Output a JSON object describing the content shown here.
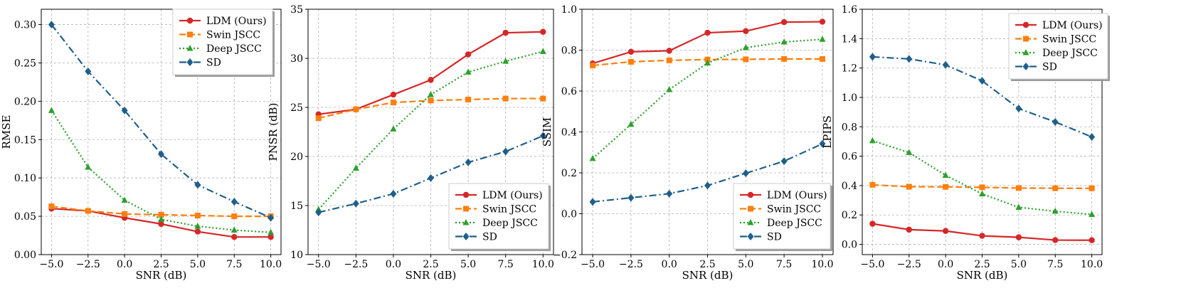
{
  "chart_data": [
    {
      "type": "line",
      "xlabel": "SNR (dB)",
      "ylabel": "RMSE",
      "x": [
        -5.0,
        -2.5,
        0.0,
        2.5,
        5.0,
        7.5,
        10.0
      ],
      "xlim": [
        -5.7,
        10.7
      ],
      "ylim": [
        0.0,
        0.32
      ],
      "xticks": [
        "-5.0",
        "-2.5",
        "0.0",
        "2.5",
        "5.0",
        "7.5",
        "10.0"
      ],
      "yticks": [
        "0.00",
        "0.05",
        "0.10",
        "0.15",
        "0.20",
        "0.25",
        "0.30"
      ],
      "ytick_values": [
        0.0,
        0.05,
        0.1,
        0.15,
        0.2,
        0.25,
        0.3
      ],
      "legend_loc": "top-right",
      "grid": true,
      "series": [
        {
          "name": "LDM (Ours)",
          "values": [
            0.06,
            0.057,
            0.048,
            0.04,
            0.03,
            0.023,
            0.023
          ]
        },
        {
          "name": "Swin JSCC",
          "values": [
            0.063,
            0.057,
            0.053,
            0.052,
            0.051,
            0.05,
            0.05
          ]
        },
        {
          "name": "Deep JSCC",
          "values": [
            0.188,
            0.114,
            0.071,
            0.046,
            0.037,
            0.032,
            0.029
          ]
        },
        {
          "name": "SD",
          "values": [
            0.3,
            0.239,
            0.188,
            0.131,
            0.091,
            0.069,
            0.048
          ]
        }
      ]
    },
    {
      "type": "line",
      "xlabel": "SNR (dB)",
      "ylabel": "PNSR (dB)",
      "x": [
        -5.0,
        -2.5,
        0.0,
        2.5,
        5.0,
        7.5,
        10.0
      ],
      "xlim": [
        -5.7,
        10.7
      ],
      "ylim": [
        10,
        35
      ],
      "xticks": [
        "-5.0",
        "-2.5",
        "0.0",
        "2.5",
        "5.0",
        "7.5",
        "10.0"
      ],
      "yticks": [
        "10",
        "15",
        "20",
        "25",
        "30",
        "35"
      ],
      "ytick_values": [
        10,
        15,
        20,
        25,
        30,
        35
      ],
      "legend_loc": "bottom-right",
      "grid": true,
      "series": [
        {
          "name": "LDM (Ours)",
          "values": [
            24.3,
            24.8,
            26.3,
            27.8,
            30.4,
            32.6,
            32.7
          ]
        },
        {
          "name": "Swin JSCC",
          "values": [
            23.9,
            24.8,
            25.5,
            25.7,
            25.8,
            25.9,
            25.9
          ]
        },
        {
          "name": "Deep JSCC",
          "values": [
            14.6,
            18.8,
            22.8,
            26.3,
            28.6,
            29.7,
            30.7
          ]
        },
        {
          "name": "SD",
          "values": [
            14.3,
            15.2,
            16.2,
            17.8,
            19.4,
            20.5,
            22.1
          ]
        }
      ]
    },
    {
      "type": "line",
      "xlabel": "SNR (dB)",
      "ylabel": "SSIM",
      "x": [
        -5.0,
        -2.5,
        0.0,
        2.5,
        5.0,
        7.5,
        10.0
      ],
      "xlim": [
        -5.7,
        10.7
      ],
      "ylim": [
        -0.2,
        1.0
      ],
      "xticks": [
        "-5.0",
        "-2.5",
        "0.0",
        "2.5",
        "5.0",
        "7.5",
        "10.0"
      ],
      "yticks": [
        "−0.2",
        "0.0",
        "0.2",
        "0.4",
        "0.6",
        "0.8",
        "1.0"
      ],
      "ytick_values": [
        -0.2,
        0.0,
        0.2,
        0.4,
        0.6,
        0.8,
        1.0
      ],
      "legend_loc": "bottom-right",
      "grid": true,
      "series": [
        {
          "name": "LDM (Ours)",
          "values": [
            0.735,
            0.792,
            0.797,
            0.885,
            0.893,
            0.937,
            0.939
          ]
        },
        {
          "name": "Swin JSCC",
          "values": [
            0.725,
            0.743,
            0.75,
            0.754,
            0.755,
            0.757,
            0.757
          ]
        },
        {
          "name": "Deep JSCC",
          "values": [
            0.27,
            0.437,
            0.607,
            0.737,
            0.812,
            0.84,
            0.853
          ]
        },
        {
          "name": "SD",
          "values": [
            0.058,
            0.078,
            0.098,
            0.138,
            0.198,
            0.257,
            0.342
          ]
        }
      ]
    },
    {
      "type": "line",
      "xlabel": "SNR (dB)",
      "ylabel": "LPIPS",
      "x": [
        -5.0,
        -2.5,
        0.0,
        2.5,
        5.0,
        7.5,
        10.0
      ],
      "xlim": [
        -5.7,
        10.7
      ],
      "ylim": [
        -0.07,
        1.6
      ],
      "xticks": [
        "-5.0",
        "-2.5",
        "0.0",
        "2.5",
        "5.0",
        "7.5",
        "10.0"
      ],
      "yticks": [
        "0.0",
        "0.2",
        "0.4",
        "0.6",
        "0.8",
        "1.0",
        "1.2",
        "1.4",
        "1.6"
      ],
      "ytick_values": [
        0.0,
        0.2,
        0.4,
        0.6,
        0.8,
        1.0,
        1.2,
        1.4,
        1.6
      ],
      "legend_loc": "top-right",
      "grid": true,
      "series": [
        {
          "name": "LDM (Ours)",
          "values": [
            0.14,
            0.1,
            0.091,
            0.058,
            0.048,
            0.029,
            0.028
          ]
        },
        {
          "name": "Swin JSCC",
          "values": [
            0.405,
            0.392,
            0.391,
            0.388,
            0.383,
            0.382,
            0.381
          ]
        },
        {
          "name": "Deep JSCC",
          "values": [
            0.705,
            0.625,
            0.47,
            0.343,
            0.252,
            0.225,
            0.203
          ]
        },
        {
          "name": "SD",
          "values": [
            1.276,
            1.262,
            1.221,
            1.113,
            0.924,
            0.833,
            0.731
          ]
        }
      ]
    }
  ],
  "styles": {
    "LDM (Ours)": {
      "color": "#d62728",
      "dash": "",
      "marker": "circle"
    },
    "Swin JSCC": {
      "color": "#ff7f0e",
      "dash": "9 4",
      "marker": "square"
    },
    "Deep JSCC": {
      "color": "#2ca02c",
      "dash": "2 3",
      "marker": "triangle"
    },
    "SD": {
      "color": "#1f5f8b",
      "dash": "10 4 2 4",
      "marker": "diamond"
    }
  }
}
